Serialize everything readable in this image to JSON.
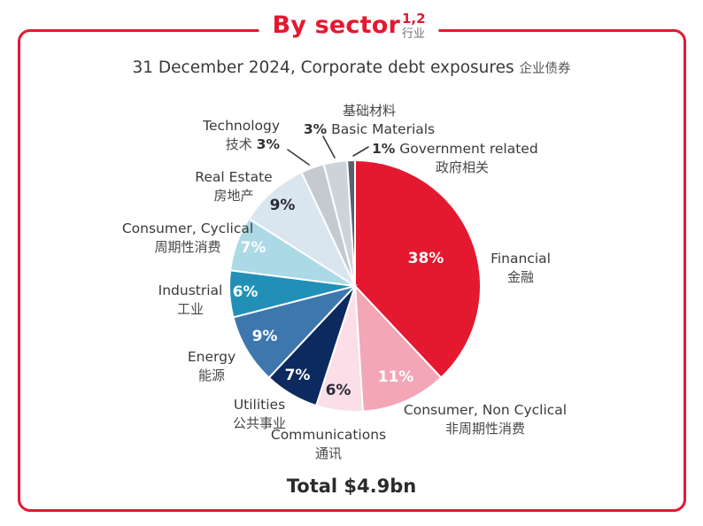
{
  "header": {
    "title": "By sector",
    "superscript": "1,2",
    "title_zh": "行业",
    "subtitle": "31 December 2024, Corporate debt exposures",
    "subtitle_zh": "企业债券"
  },
  "footer": {
    "total": "Total $4.9bn"
  },
  "colors": {
    "accent_red": "#e4182f",
    "label_text": "#3a3a3a",
    "inside_label_dark": "#2a2a38",
    "inside_label_light": "#ffffff"
  },
  "chart_data": {
    "type": "pie",
    "title": "By sector 行业",
    "subtitle": "31 December 2024, Corporate debt exposures 企业债券",
    "total_label": "Total $4.9bn",
    "legend_position": "outside-labels-with-leader-lines",
    "start_angle_deg": 0,
    "direction": "clockwise",
    "slices": [
      {
        "name": "Financial",
        "name_zh": "金融",
        "value": 38,
        "pct_label": "38%",
        "color": "#e4182f"
      },
      {
        "name": "Consumer, Non Cyclical",
        "name_zh": "非周期性消费",
        "value": 11,
        "pct_label": "11%",
        "color": "#f2a6b6"
      },
      {
        "name": "Communications",
        "name_zh": "通讯",
        "value": 6,
        "pct_label": "6%",
        "color": "#fbdee7"
      },
      {
        "name": "Utilities",
        "name_zh": "公共事业",
        "value": 7,
        "pct_label": "7%",
        "color": "#0d2a5e"
      },
      {
        "name": "Energy",
        "name_zh": "能源",
        "value": 9,
        "pct_label": "9%",
        "color": "#3d77ae"
      },
      {
        "name": "Industrial",
        "name_zh": "工业",
        "value": 6,
        "pct_label": "6%",
        "color": "#2290b6"
      },
      {
        "name": "Consumer, Cyclical",
        "name_zh": "周期性消费",
        "value": 7,
        "pct_label": "7%",
        "color": "#abd9e6"
      },
      {
        "name": "Real Estate",
        "name_zh": "房地产",
        "value": 9,
        "pct_label": "9%",
        "color": "#d9e6f0"
      },
      {
        "name": "Technology",
        "name_zh": "技术",
        "value": 3,
        "pct_label": "3%",
        "color": "#c4cacf"
      },
      {
        "name": "Basic Materials",
        "name_zh": "基础材料",
        "value": 3,
        "pct_label": "3%",
        "color": "#ccd3d9"
      },
      {
        "name": "Government related",
        "name_zh": "政府相关",
        "value": 1,
        "pct_label": "1%",
        "color": "#57616c"
      }
    ]
  }
}
